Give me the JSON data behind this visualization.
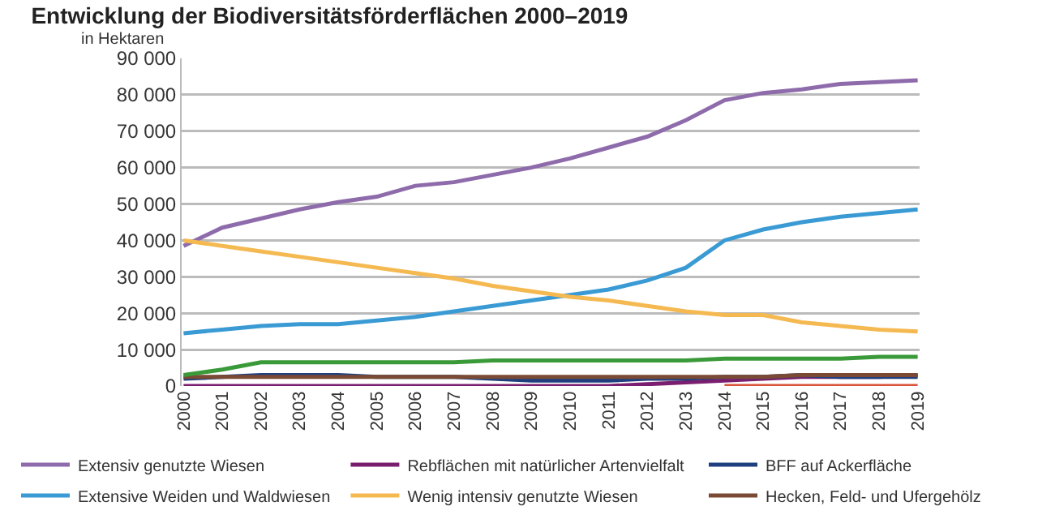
{
  "chart_data": {
    "type": "line",
    "title": "Entwicklung der Biodiversitätsförderflächen 2000–2019",
    "subtitle": "in Hektaren",
    "categories": [
      "2000",
      "2001",
      "2002",
      "2003",
      "2004",
      "2005",
      "2006",
      "2007",
      "2008",
      "2009",
      "2010",
      "2011",
      "2012",
      "2013",
      "2014",
      "2015",
      "2016",
      "2017",
      "2018",
      "2019"
    ],
    "series": [
      {
        "name": "Extensiv genutzte Wiesen",
        "color": "#8e6bab",
        "values": [
          38500,
          43500,
          46000,
          48500,
          50500,
          52000,
          55000,
          56000,
          58000,
          60000,
          62500,
          65500,
          68500,
          73000,
          78500,
          80500,
          81500,
          83000,
          83500,
          84000
        ]
      },
      {
        "name": "Rebflächen mit natürlicher Artenvielfalt",
        "color": "#7a1f6f",
        "values": [
          0,
          0,
          0,
          0,
          0,
          0,
          0,
          0,
          0,
          0,
          0,
          0,
          500,
          1000,
          1500,
          2000,
          2500,
          2500,
          2500,
          3000
        ]
      },
      {
        "name": "BFF auf Ackerfläche",
        "color": "#1f3f7f",
        "values": [
          2000,
          2500,
          3000,
          3000,
          3000,
          2500,
          2500,
          2500,
          2000,
          1500,
          1500,
          1500,
          2000,
          2000,
          2500,
          2500,
          3000,
          2500,
          2500,
          2500
        ]
      },
      {
        "name": "Extensive Weiden und Waldwiesen",
        "color": "#3a9ad4",
        "values": [
          14500,
          15500,
          16500,
          17000,
          17000,
          18000,
          19000,
          20500,
          22000,
          23500,
          25000,
          26500,
          29000,
          32500,
          40000,
          43000,
          45000,
          46500,
          47500,
          48500
        ]
      },
      {
        "name": "Wenig intensiv genutzte Wiesen",
        "color": "#f5b951",
        "values": [
          40000,
          38500,
          37000,
          35500,
          34000,
          32500,
          31000,
          29500,
          27500,
          26000,
          24500,
          23500,
          22000,
          20500,
          19500,
          19500,
          17500,
          16500,
          15500,
          15000
        ]
      },
      {
        "name": "Hecken, Feld- und Ufergehölz",
        "color": "#7a4a35",
        "values": [
          2500,
          2500,
          2500,
          2500,
          2500,
          2500,
          2500,
          2500,
          2500,
          2500,
          2500,
          2500,
          2500,
          2500,
          2500,
          2500,
          3000,
          3000,
          3000,
          3000
        ]
      },
      {
        "color": "#3a9a3a",
        "values": [
          3000,
          4500,
          6500,
          6500,
          6500,
          6500,
          6500,
          6500,
          7000,
          7000,
          7000,
          7000,
          7000,
          7000,
          7500,
          7500,
          7500,
          7500,
          8000,
          8000
        ]
      },
      {
        "color": "#d9533a",
        "values": [
          null,
          null,
          null,
          null,
          null,
          null,
          null,
          null,
          null,
          null,
          null,
          null,
          null,
          null,
          0,
          0,
          0,
          0,
          0,
          0
        ]
      }
    ],
    "ylim": [
      0,
      90000
    ],
    "yticks": [
      {
        "value": 0,
        "label": "0"
      },
      {
        "value": 10000,
        "label": "10 000"
      },
      {
        "value": 20000,
        "label": "20 000"
      },
      {
        "value": 30000,
        "label": "30 000"
      },
      {
        "value": 40000,
        "label": "40 000"
      },
      {
        "value": 50000,
        "label": "50 000"
      },
      {
        "value": 60000,
        "label": "60 000"
      },
      {
        "value": 70000,
        "label": "70 000"
      },
      {
        "value": 80000,
        "label": "80 000"
      },
      {
        "value": 90000,
        "label": "90 000"
      }
    ],
    "grid": "y",
    "legend": "bottom",
    "marker": "none",
    "line_style": "solid"
  }
}
